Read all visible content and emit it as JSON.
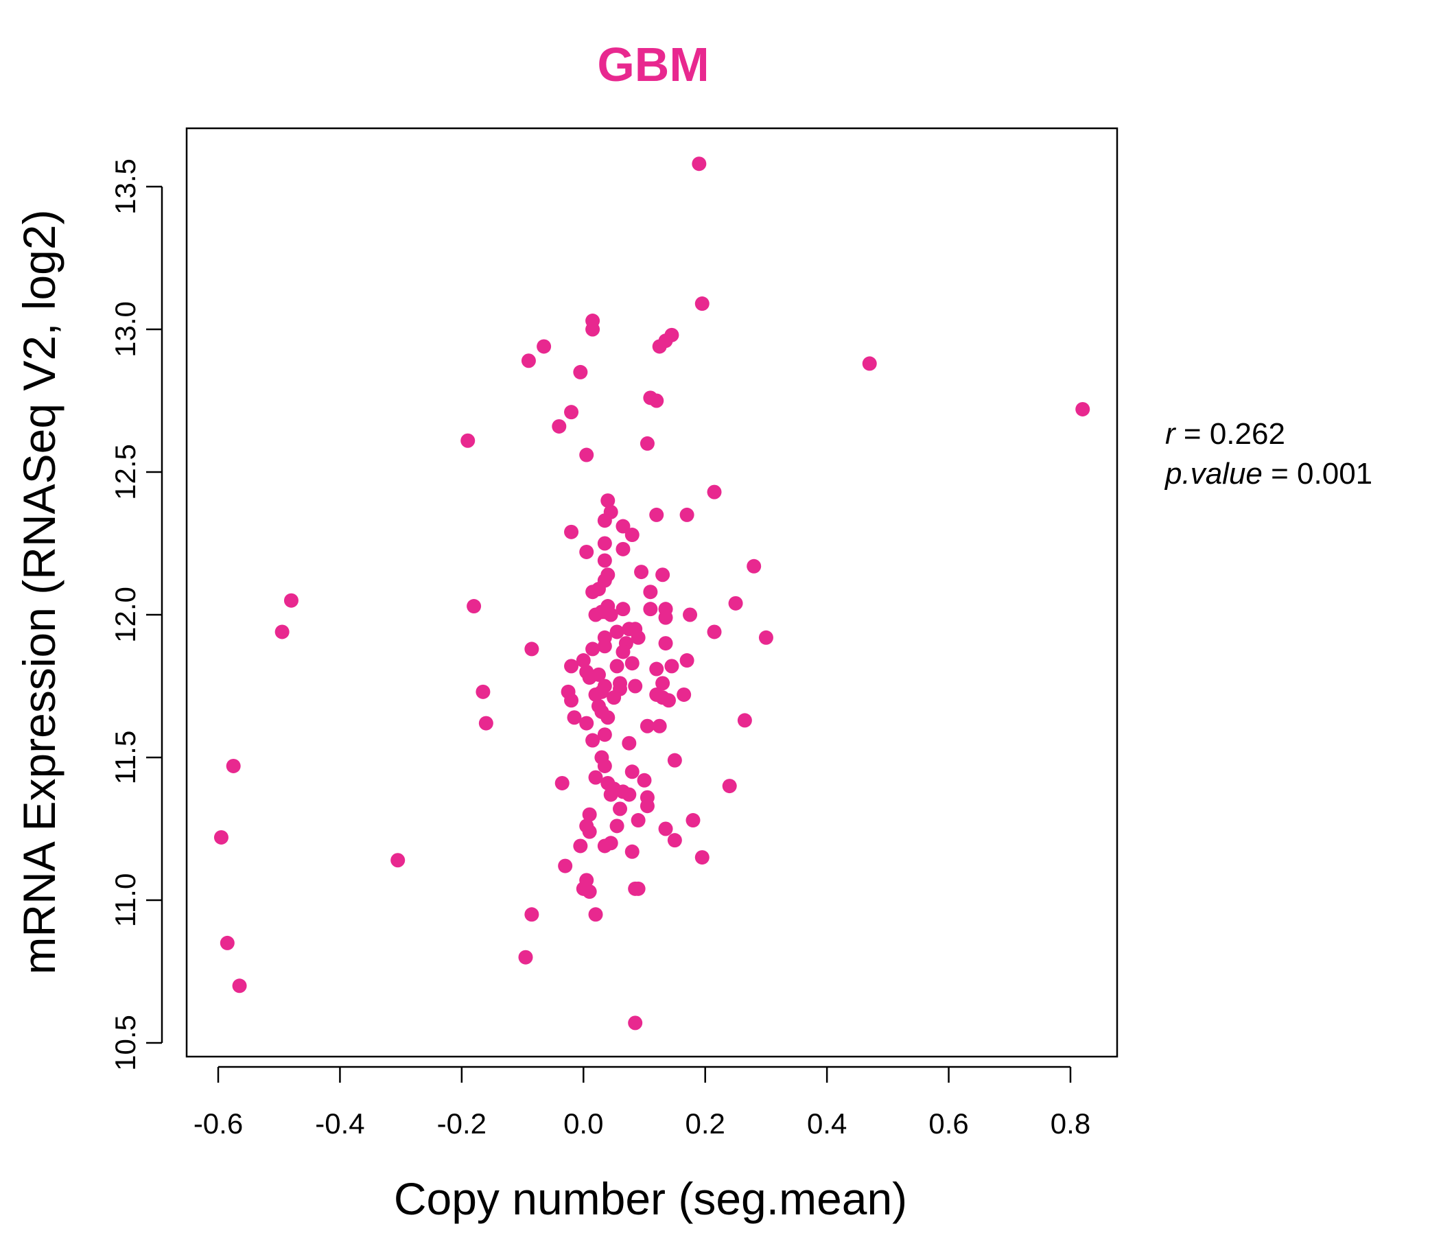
{
  "colors": {
    "accent": "#e8288f",
    "axis": "#000000",
    "background": "#ffffff"
  },
  "chart_data": {
    "type": "scatter",
    "title": "GBM",
    "xlabel": "Copy number (seg.mean)",
    "ylabel": "mRNA Expression (RNASeq V2, log2)",
    "xlim": [
      -0.6,
      0.8
    ],
    "ylim": [
      10.5,
      13.5
    ],
    "xticks": [
      "-0.6",
      "-0.4",
      "-0.2",
      "0.0",
      "0.2",
      "0.4",
      "0.6",
      "0.8"
    ],
    "yticks": [
      "10.5",
      "11.0",
      "11.5",
      "12.0",
      "12.5",
      "13.0",
      "13.5"
    ],
    "stats": {
      "r_label": "r",
      "r_value": "0.262",
      "p_label": "p.value",
      "p_value": "0.001"
    },
    "points": [
      [
        0.19,
        13.58
      ],
      [
        0.195,
        13.09
      ],
      [
        0.015,
        13.03
      ],
      [
        0.015,
        13.0
      ],
      [
        0.145,
        12.98
      ],
      [
        0.135,
        12.96
      ],
      [
        0.125,
        12.94
      ],
      [
        -0.065,
        12.94
      ],
      [
        -0.09,
        12.89
      ],
      [
        0.47,
        12.88
      ],
      [
        -0.005,
        12.85
      ],
      [
        0.11,
        12.76
      ],
      [
        0.12,
        12.75
      ],
      [
        0.82,
        12.72
      ],
      [
        -0.02,
        12.71
      ],
      [
        -0.04,
        12.66
      ],
      [
        -0.19,
        12.61
      ],
      [
        0.105,
        12.6
      ],
      [
        0.005,
        12.56
      ],
      [
        0.215,
        12.43
      ],
      [
        0.04,
        12.4
      ],
      [
        0.045,
        12.36
      ],
      [
        0.12,
        12.35
      ],
      [
        0.17,
        12.35
      ],
      [
        0.035,
        12.33
      ],
      [
        0.065,
        12.31
      ],
      [
        0.08,
        12.28
      ],
      [
        -0.02,
        12.29
      ],
      [
        0.035,
        12.25
      ],
      [
        0.065,
        12.23
      ],
      [
        0.005,
        12.22
      ],
      [
        0.035,
        12.19
      ],
      [
        0.095,
        12.15
      ],
      [
        0.28,
        12.17
      ],
      [
        0.04,
        12.14
      ],
      [
        0.13,
        12.14
      ],
      [
        0.035,
        12.12
      ],
      [
        0.025,
        12.09
      ],
      [
        0.015,
        12.08
      ],
      [
        0.11,
        12.08
      ],
      [
        0.25,
        12.04
      ],
      [
        -0.48,
        12.05
      ],
      [
        -0.18,
        12.03
      ],
      [
        0.04,
        12.03
      ],
      [
        0.035,
        12.01
      ],
      [
        0.065,
        12.02
      ],
      [
        0.11,
        12.02
      ],
      [
        0.135,
        12.02
      ],
      [
        0.02,
        12.0
      ],
      [
        0.045,
        12.0
      ],
      [
        0.175,
        12.0
      ],
      [
        0.135,
        11.99
      ],
      [
        0.03,
        12.01
      ],
      [
        -0.495,
        11.94
      ],
      [
        0.215,
        11.94
      ],
      [
        0.3,
        11.92
      ],
      [
        0.055,
        11.94
      ],
      [
        0.075,
        11.95
      ],
      [
        0.085,
        11.95
      ],
      [
        0.035,
        11.92
      ],
      [
        0.09,
        11.92
      ],
      [
        0.07,
        11.9
      ],
      [
        0.135,
        11.9
      ],
      [
        0.035,
        11.89
      ],
      [
        0.015,
        11.88
      ],
      [
        0.065,
        11.87
      ],
      [
        -0.085,
        11.88
      ],
      [
        0.08,
        11.83
      ],
      [
        0.17,
        11.84
      ],
      [
        0.0,
        11.84
      ],
      [
        -0.02,
        11.82
      ],
      [
        0.055,
        11.82
      ],
      [
        0.12,
        11.81
      ],
      [
        0.145,
        11.82
      ],
      [
        0.005,
        11.8
      ],
      [
        0.025,
        11.79
      ],
      [
        0.01,
        11.78
      ],
      [
        0.06,
        11.76
      ],
      [
        0.13,
        11.76
      ],
      [
        0.035,
        11.75
      ],
      [
        0.085,
        11.75
      ],
      [
        0.06,
        11.74
      ],
      [
        0.03,
        11.73
      ],
      [
        -0.025,
        11.73
      ],
      [
        0.02,
        11.72
      ],
      [
        -0.165,
        11.73
      ],
      [
        0.12,
        11.72
      ],
      [
        0.165,
        11.72
      ],
      [
        0.05,
        11.71
      ],
      [
        0.13,
        11.71
      ],
      [
        -0.02,
        11.7
      ],
      [
        0.14,
        11.7
      ],
      [
        0.025,
        11.68
      ],
      [
        0.03,
        11.66
      ],
      [
        0.04,
        11.64
      ],
      [
        -0.015,
        11.64
      ],
      [
        0.005,
        11.62
      ],
      [
        0.265,
        11.63
      ],
      [
        -0.16,
        11.62
      ],
      [
        0.105,
        11.61
      ],
      [
        0.125,
        11.61
      ],
      [
        0.035,
        11.58
      ],
      [
        0.015,
        11.56
      ],
      [
        0.075,
        11.55
      ],
      [
        0.03,
        11.5
      ],
      [
        0.15,
        11.49
      ],
      [
        -0.575,
        11.47
      ],
      [
        0.035,
        11.47
      ],
      [
        0.08,
        11.45
      ],
      [
        0.02,
        11.43
      ],
      [
        0.1,
        11.42
      ],
      [
        0.04,
        11.41
      ],
      [
        -0.035,
        11.41
      ],
      [
        0.24,
        11.4
      ],
      [
        0.05,
        11.39
      ],
      [
        0.065,
        11.38
      ],
      [
        0.045,
        11.37
      ],
      [
        0.075,
        11.37
      ],
      [
        0.105,
        11.36
      ],
      [
        0.105,
        11.33
      ],
      [
        0.06,
        11.32
      ],
      [
        0.01,
        11.3
      ],
      [
        0.18,
        11.28
      ],
      [
        0.09,
        11.28
      ],
      [
        0.005,
        11.26
      ],
      [
        0.055,
        11.26
      ],
      [
        0.135,
        11.25
      ],
      [
        0.01,
        11.24
      ],
      [
        -0.595,
        11.22
      ],
      [
        0.15,
        11.21
      ],
      [
        0.045,
        11.2
      ],
      [
        -0.005,
        11.19
      ],
      [
        0.035,
        11.19
      ],
      [
        0.08,
        11.17
      ],
      [
        0.195,
        11.15
      ],
      [
        -0.305,
        11.14
      ],
      [
        -0.03,
        11.12
      ],
      [
        0.005,
        11.07
      ],
      [
        0.0,
        11.04
      ],
      [
        0.01,
        11.03
      ],
      [
        0.085,
        11.04
      ],
      [
        0.09,
        11.04
      ],
      [
        -0.085,
        10.95
      ],
      [
        0.02,
        10.95
      ],
      [
        -0.585,
        10.85
      ],
      [
        -0.095,
        10.8
      ],
      [
        -0.565,
        10.7
      ],
      [
        0.085,
        10.57
      ]
    ]
  }
}
